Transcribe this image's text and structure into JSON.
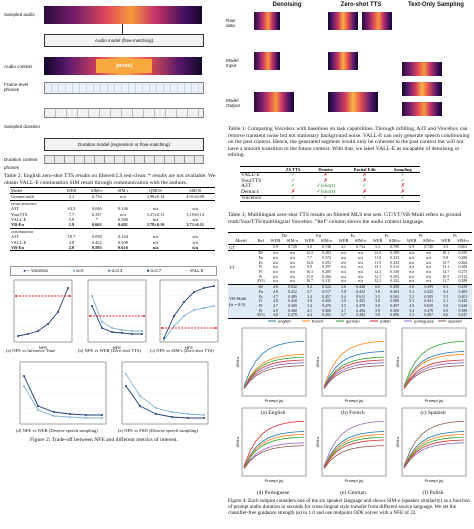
{
  "diagram": {
    "sampled_audio": "Sampled audio",
    "audio_model": "Audio model (flow-matching)",
    "audio_context": "Audio context",
    "mask_label": "[MASK]",
    "frame_phones": "Frame-level\nphones",
    "sampled_duration": "Sampled duration",
    "duration_model": "Duration model (regression or flow-matching)",
    "duration_context": "Duration context",
    "phones": "phones"
  },
  "samples": {
    "headers": [
      "Denoising",
      "Zero-shot TTS",
      "Text-Only Sampling"
    ],
    "rows": [
      "Raw\ndata",
      "Model\nInput",
      "Model\nOutput"
    ]
  },
  "table1_caption": "Table 1: Comparing Voicebox with baselines on task capabilities. Through infilling, A3T and Voicebox can remove transient noise but not stationary background noise. VALL-E can only generate speech conditioning on the past context. Hence, the generated segment would only be coherent to the past context but will not have a smooth transition to the future context. With that, we label VALL-E as incapable of denoising or editing.",
  "table1": {
    "headers": [
      "",
      "ZS TTS",
      "Denoise",
      "Partial Edit",
      "Sampling"
    ],
    "rows": [
      [
        "VALL-E",
        "✓",
        "✗",
        "✗",
        "✓"
      ],
      [
        "YourTTS",
        "✓",
        "✗",
        "✗",
        "✓"
      ],
      [
        "A3T",
        "✓",
        "✓(short)",
        "✓",
        "✗"
      ],
      [
        "Demucs",
        "✗",
        "✓(short)",
        "✗",
        "✗"
      ],
      [
        "Voicebox",
        "✓",
        "✓",
        "✓",
        "✓"
      ]
    ]
  },
  "table2_caption": "Table 2: English zero-shot TTS results on filtered LS test-clean. * results are not available. We obtain VALL-E continuation SIM result through communication with the authors.",
  "table2": {
    "headers": [
      "Model",
      "WER",
      "SIM-o",
      "SIM-r",
      "QMOS",
      "SMOS"
    ],
    "groups": [
      {
        "label": "",
        "rows": [
          [
            "Ground truth",
            "2.2",
            "0.754",
            "n/a",
            "3.98±0.14",
            "4.01±0.09"
          ]
        ]
      },
      {
        "label": "cross-sentence",
        "rows": [
          [
            "A3T",
            "63.3",
            "0.046",
            "0.146",
            "n/a",
            "n/a"
          ],
          [
            "YourTTS",
            "7.7",
            "0.337",
            "n/a",
            "3.27±0.13",
            "3.19±0.14"
          ],
          [
            "VALL-E",
            "5.9",
            "*",
            "0.580",
            "n/a",
            "n/a"
          ],
          [
            "VB-En",
            "1.9",
            "0.662",
            "0.681",
            "3.78±0.10",
            "3.71±0.11"
          ]
        ]
      },
      {
        "label": "continuation",
        "rows": [
          [
            "A3T",
            "18.7",
            "0.058",
            "0.144",
            "n/a",
            "n/a"
          ],
          [
            "VALL-E",
            "3.8",
            "0.452",
            "0.508",
            "n/a",
            "n/a"
          ],
          [
            "VB-En",
            "2.0",
            "0.593",
            "0.616",
            "n/a",
            "n/a"
          ]
        ]
      }
    ]
  },
  "table3_caption": "Table 3: Multilingual zero-shot TTS results on filtered MLS test sets. GT/YT/VB-Multi refers to ground truth/YourTTS/multilingual Voicebox. \"Ref\" column shows the audio context language.",
  "table3": {
    "langs": [
      "De",
      "En",
      "Es",
      "Fr",
      "Pl",
      "Pt"
    ],
    "subheaders": [
      "WER",
      "SIM-o"
    ],
    "sections": [
      {
        "model": "GT",
        "rows": [
          [
            "",
            "5.9",
            "0.729",
            "5.0",
            "0.748",
            "4.1",
            "0.734",
            "5.2",
            "0.709",
            "6.9",
            "0.720",
            "5.5",
            "0.661"
          ]
        ]
      },
      {
        "model": "YT",
        "rows": [
          [
            "De",
            "n/a",
            "n/a",
            "12.2",
            "0.283",
            "n/a",
            "n/a",
            "12.4",
            "0.309",
            "n/a",
            "n/a",
            "10.1",
            "0.295"
          ],
          [
            "En",
            "n/a",
            "n/a",
            "7.7",
            "0.372",
            "n/a",
            "n/a",
            "11.8",
            "0.323",
            "n/a",
            "n/a",
            "9.8",
            "0.286"
          ],
          [
            "Es",
            "n/a",
            "n/a",
            "14.8",
            "0.291",
            "n/a",
            "n/a",
            "11.5",
            "0.343",
            "n/a",
            "n/a",
            "13.7",
            "0.264"
          ],
          [
            "Fr",
            "n/a",
            "n/a",
            "9.9",
            "0.297",
            "n/a",
            "n/a",
            "13.1",
            "0.314",
            "n/a",
            "n/a",
            "13.1",
            "0.286"
          ],
          [
            "Pl",
            "n/a",
            "n/a",
            "16.3",
            "0.285",
            "n/a",
            "n/a",
            "12.4",
            "0.330",
            "n/a",
            "n/a",
            "14.7",
            "0.273"
          ],
          [
            "Pt",
            "n/a",
            "n/a",
            "11.0",
            "0.266",
            "n/a",
            "n/a",
            "12.1",
            "0.303",
            "n/a",
            "n/a",
            "10.5",
            "0.312"
          ],
          [
            "AVG",
            "n/a",
            "n/a",
            "10.7",
            "0.311",
            "n/a",
            "n/a",
            "12.2",
            "0.322",
            "n/a",
            "n/a",
            "11.7",
            "0.289"
          ]
        ]
      },
      {
        "model": "VB-Multi\n(ts = 0.9)",
        "rows": [
          [
            "De",
            "4.8",
            "0.632",
            "8.2",
            "0.522",
            "3.6",
            "0.448",
            "6.0",
            "0.498",
            "5.6",
            "0.499",
            "8.5",
            "0.439"
          ],
          [
            "En",
            "4.8",
            "0.412",
            "3.7",
            "0.517",
            "3.8",
            "0.432",
            "5.8",
            "0.403",
            "5.2",
            "0.425",
            "8.4",
            "0.405"
          ],
          [
            "Es",
            "4.7",
            "0.489",
            "3.4",
            "0.457",
            "3.4",
            "0.615",
            "5.5",
            "0.502",
            "5.2",
            "0.509",
            "5.5",
            "0.401"
          ],
          [
            "Fr",
            "4.8",
            "0.418",
            "3.9",
            "0.450",
            "3.9",
            "0.455",
            "5.8",
            "0.586",
            "5.3",
            "0.451",
            "6.1",
            "0.420"
          ],
          [
            "Pl",
            "4.7",
            "0.469",
            "3.4",
            "0.470",
            "3.5",
            "0.479",
            "5.8",
            "0.497",
            "4.9",
            "0.650",
            "5.6",
            "0.426"
          ],
          [
            "Pt",
            "4.9",
            "0.460",
            "4.1",
            "0.488",
            "3.7",
            "0.494",
            "5.9",
            "0.500",
            "5.4",
            "0.479",
            "6.0",
            "0.589"
          ],
          [
            "AVG",
            "4.8",
            "0.479",
            "4.4",
            "0.492",
            "3.7",
            "0.484",
            "5.8",
            "0.496",
            "5.3",
            "0.497",
            "6.6",
            "0.447"
          ]
        ]
      }
    ]
  },
  "figure2": {
    "legend": [
      "Voicebox",
      "α=0",
      "α=0.3",
      "α=0.7",
      "VALL-E"
    ],
    "captions": [
      "(a) NFE vs Inference Time",
      "(b) NFE vs WER (Zero-shot TTS)",
      "(c) NFE vs SIM-r (Zero-shot TTS)",
      "(d) NFE vs WER (Diverse speech sampling)",
      "(e) NFE vs FSD (Diverse speech sampling)"
    ],
    "xlabel": "NFE",
    "caption": "Figure 2: Trade-off between NFE and different metrics of interest."
  },
  "figure4": {
    "legend": [
      "english",
      "french",
      "german",
      "polish",
      "portuguese",
      "spanish"
    ],
    "xlabel": "Prompt (s)",
    "ylabel": "SIM-o",
    "captions": [
      "(a) English",
      "(b) French",
      "(c) Spanish",
      "(d) Portuguese",
      "(e) German",
      "(f) Polish"
    ],
    "caption": "Figure 4: Each subplot considers one of the six speaker language and shows SIM-o (speaker similarity) as a function of prompt audio duration in seconds for cross-lingual style transfer from different source language. We set the classifier-free guidance strength (α) to 1.0 and use midpoint ODE solver with a NFE of 32."
  },
  "colors": {
    "english": "#1f77b4",
    "french": "#ff7f0e",
    "german": "#2ca02c",
    "polish": "#d62728",
    "portuguese": "#9467bd",
    "spanish": "#8c564b",
    "voicebox": "#1f3b73",
    "valle": "#d62728"
  }
}
